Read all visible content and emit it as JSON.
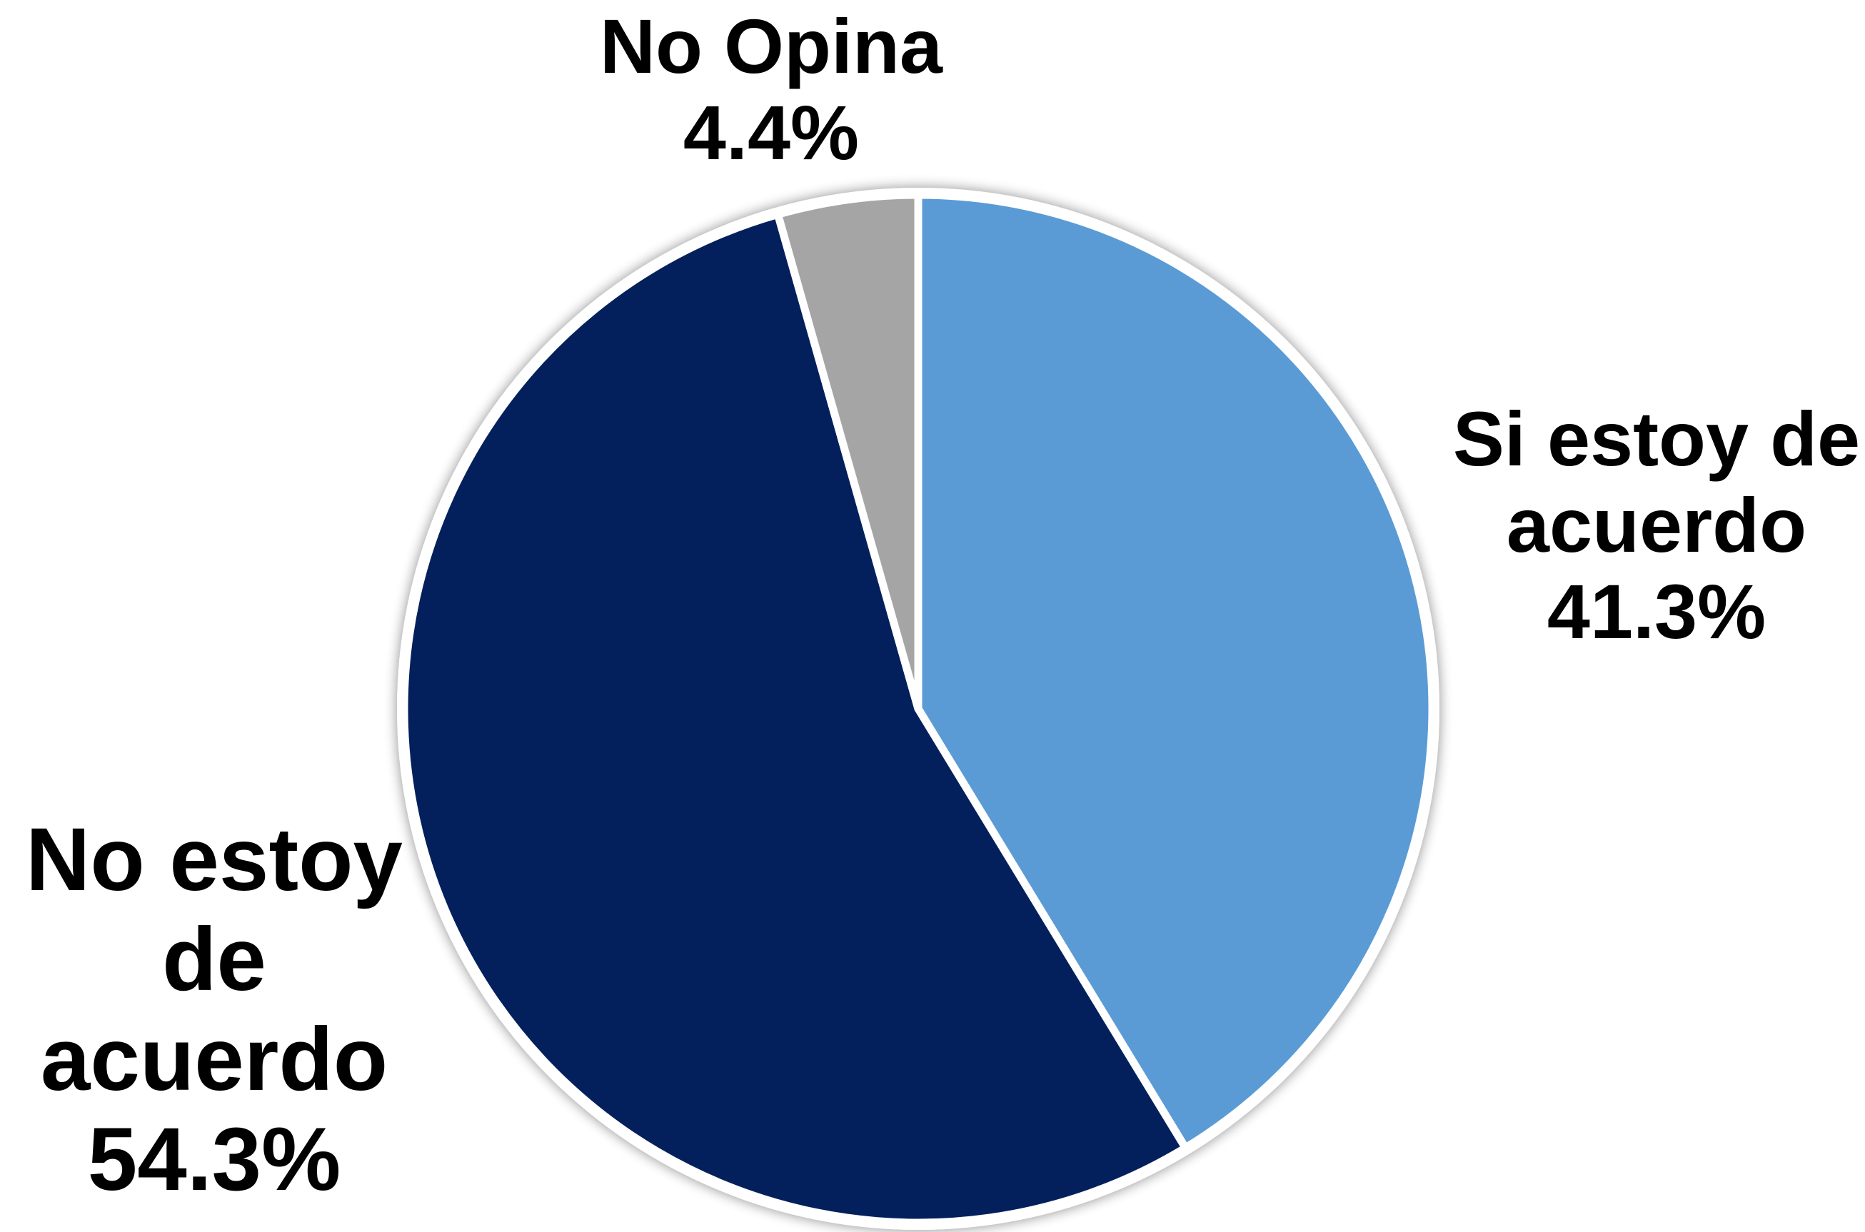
{
  "chart_data": {
    "type": "pie",
    "start_angle_deg": 0,
    "direction": "clockwise",
    "slices": [
      {
        "label_lines": [
          "Si estoy de",
          "acuerdo"
        ],
        "value": 41.3,
        "value_label": "41.3%",
        "color": "#5B9BD5"
      },
      {
        "label_lines": [
          "No estoy",
          "de",
          "acuerdo"
        ],
        "value": 54.3,
        "value_label": "54.3%",
        "color": "#03205D"
      },
      {
        "label_lines": [
          "No Opina"
        ],
        "value": 4.4,
        "value_label": "4.4%",
        "color": "#A5A5A5"
      }
    ],
    "slice_border_color": "#FFFFFF",
    "legend": "none"
  }
}
